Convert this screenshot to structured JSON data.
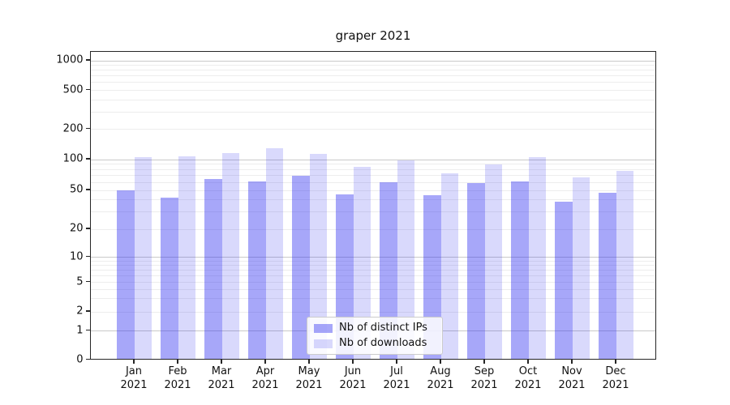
{
  "title": "graper 2021",
  "chart_data": {
    "type": "bar",
    "title": "graper 2021",
    "categories": [
      "Jan",
      "Feb",
      "Mar",
      "Apr",
      "May",
      "Jun",
      "Jul",
      "Aug",
      "Sep",
      "Oct",
      "Nov",
      "Dec"
    ],
    "category_year": "2021",
    "series": [
      {
        "name": "Nb of distinct IPs",
        "color": "#2d2df0",
        "alpha": 0.42,
        "values": [
          49,
          41,
          63,
          60,
          67,
          44,
          58,
          43,
          57,
          59,
          37,
          46
        ]
      },
      {
        "name": "Nb of downloads",
        "color": "#2d2df0",
        "alpha": 0.18,
        "values": [
          102,
          105,
          113,
          127,
          110,
          82,
          95,
          72,
          88,
          102,
          65,
          76
        ]
      }
    ],
    "xlabel": "",
    "ylabel": "",
    "yticks": [
      0,
      1,
      2,
      5,
      10,
      20,
      50,
      100,
      200,
      500,
      1000
    ],
    "yscale": "symlog",
    "ylim": [
      0,
      1400
    ],
    "grid": true,
    "legend_position": "lower center",
    "colors": {
      "major_gridline": "#c9c9c9",
      "minor_gridline": "#ededed",
      "axis": "#262626",
      "text": "#111111",
      "background": "#ffffff"
    }
  }
}
